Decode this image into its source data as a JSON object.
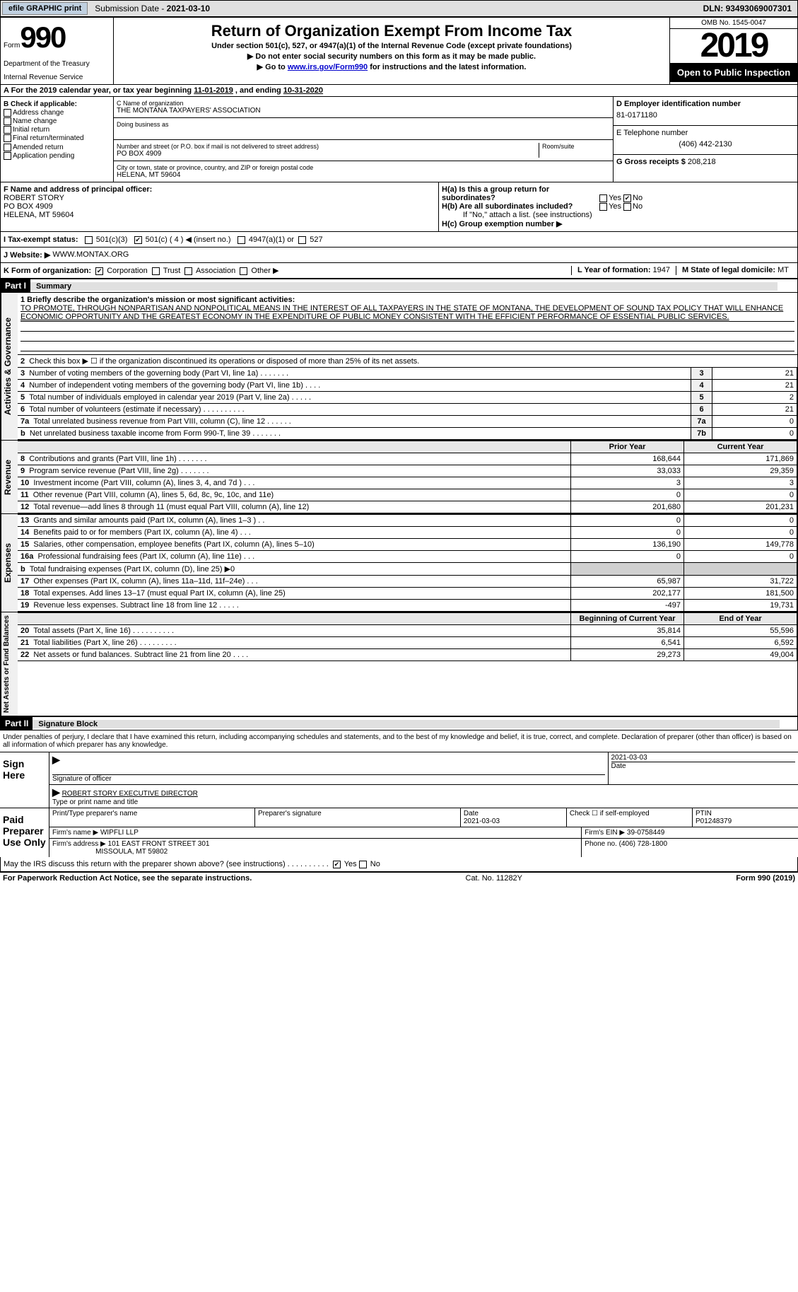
{
  "header": {
    "efile_btn": "efile GRAPHIC print",
    "sub_date_label": "Submission Date - ",
    "sub_date": "2021-03-10",
    "dln_label": "DLN: ",
    "dln": "93493069007301"
  },
  "top": {
    "form_word": "Form",
    "form_num": "990",
    "dept1": "Department of the Treasury",
    "dept2": "Internal Revenue Service",
    "title": "Return of Organization Exempt From Income Tax",
    "sub1": "Under section 501(c), 527, or 4947(a)(1) of the Internal Revenue Code (except private foundations)",
    "sub2": "▶ Do not enter social security numbers on this form as it may be made public.",
    "sub3a": "▶ Go to ",
    "sub3_link": "www.irs.gov/Form990",
    "sub3b": " for instructions and the latest information.",
    "omb": "OMB No. 1545-0047",
    "year": "2019",
    "open_pub": "Open to Public Inspection"
  },
  "period": {
    "a": "A For the 2019 calendar year, or tax year beginning ",
    "begin": "11-01-2019",
    "mid": "  , and ending ",
    "end": "10-31-2020"
  },
  "b": {
    "label": "B Check if applicable:",
    "addr": "Address change",
    "name": "Name change",
    "init": "Initial return",
    "final": "Final return/terminated",
    "amend": "Amended return",
    "app": "Application pending"
  },
  "c": {
    "name_lbl": "C Name of organization",
    "name": "THE MONTANA TAXPAYERS' ASSOCIATION",
    "dba_lbl": "Doing business as",
    "dba": "",
    "street_lbl": "Number and street (or P.O. box if mail is not delivered to street address)",
    "room_lbl": "Room/suite",
    "street": "PO BOX 4909",
    "city_lbl": "City or town, state or province, country, and ZIP or foreign postal code",
    "city": "HELENA, MT  59604"
  },
  "d": {
    "ein_lbl": "D Employer identification number",
    "ein": "81-0171180",
    "tel_lbl": "E Telephone number",
    "tel": "(406) 442-2130",
    "gross_lbl": "G Gross receipts $ ",
    "gross": "208,218"
  },
  "f": {
    "lbl": "F Name and address of principal officer:",
    "name": "ROBERT STORY",
    "addr1": "PO BOX 4909",
    "addr2": "HELENA, MT  59604"
  },
  "h": {
    "a_lbl": "H(a)  Is this a group return for subordinates?",
    "b_lbl": "H(b)  Are all subordinates included?",
    "b_note": "If \"No,\" attach a list. (see instructions)",
    "c_lbl": "H(c)  Group exemption number ▶"
  },
  "i": {
    "lbl": "I   Tax-exempt status:",
    "o1": "501(c)(3)",
    "o2": "501(c) ( 4 ) ◀ (insert no.)",
    "o3": "4947(a)(1) or",
    "o4": "527"
  },
  "j": {
    "lbl": "J   Website: ▶ ",
    "val": "WWW.MONTAX.ORG"
  },
  "k": {
    "lbl": "K Form of organization:",
    "corp": "Corporation",
    "trust": "Trust",
    "assoc": "Association",
    "other": "Other ▶"
  },
  "lm": {
    "l_lbl": "L Year of formation: ",
    "l_val": "1947",
    "m_lbl": "M State of legal domicile: ",
    "m_val": "MT"
  },
  "part1": {
    "hdr": "Part I",
    "title": "Summary",
    "side_ag": "Activities & Governance",
    "side_rev": "Revenue",
    "side_exp": "Expenses",
    "side_net": "Net Assets or Fund Balances"
  },
  "mission": {
    "lbl": "1  Briefly describe the organization's mission or most significant activities:",
    "text": "TO PROMOTE, THROUGH NONPARTISAN AND NONPOLITICAL MEANS IN THE INTEREST OF ALL TAXPAYERS IN THE STATE OF MONTANA, THE DEVELOPMENT OF SOUND TAX POLICY THAT WILL ENHANCE ECONOMIC OPPORTUNITY AND THE GREATEST ECONOMY IN THE EXPENDITURE OF PUBLIC MONEY CONSISTENT WITH THE EFFICIENT PERFORMANCE OF ESSENTIAL PUBLIC SERVICES."
  },
  "gov_lines": [
    {
      "n": "2",
      "t": "Check this box ▶ ☐  if the organization discontinued its operations or disposed of more than 25% of its net assets."
    },
    {
      "n": "3",
      "t": "Number of voting members of the governing body (Part VI, line 1a)   .    .    .    .    .    .    .",
      "box": "3",
      "v": "21"
    },
    {
      "n": "4",
      "t": "Number of independent voting members of the governing body (Part VI, line 1b)   .    .    .    .",
      "box": "4",
      "v": "21"
    },
    {
      "n": "5",
      "t": "Total number of individuals employed in calendar year 2019 (Part V, line 2a)   .    .    .    .    .",
      "box": "5",
      "v": "2"
    },
    {
      "n": "6",
      "t": "Total number of volunteers (estimate if necessary)   .    .    .    .    .    .    .    .    .    .",
      "box": "6",
      "v": "21"
    },
    {
      "n": "7a",
      "t": "Total unrelated business revenue from Part VIII, column (C), line 12   .    .    .    .    .    .",
      "box": "7a",
      "v": "0"
    },
    {
      "n": "b",
      "t": "Net unrelated business taxable income from Form 990-T, line 39   .    .    .    .    .    .    .",
      "box": "7b",
      "v": "0"
    }
  ],
  "fin_hdr": {
    "py": "Prior Year",
    "cy": "Current Year"
  },
  "rev_lines": [
    {
      "n": "8",
      "t": "Contributions and grants (Part VIII, line 1h)   .    .    .    .    .    .    .",
      "py": "168,644",
      "cy": "171,869"
    },
    {
      "n": "9",
      "t": "Program service revenue (Part VIII, line 2g)   .    .    .    .    .    .    .",
      "py": "33,033",
      "cy": "29,359"
    },
    {
      "n": "10",
      "t": "Investment income (Part VIII, column (A), lines 3, 4, and 7d )   .    .    .",
      "py": "3",
      "cy": "3"
    },
    {
      "n": "11",
      "t": "Other revenue (Part VIII, column (A), lines 5, 6d, 8c, 9c, 10c, and 11e)",
      "py": "0",
      "cy": "0"
    },
    {
      "n": "12",
      "t": "Total revenue—add lines 8 through 11 (must equal Part VIII, column (A), line 12)",
      "py": "201,680",
      "cy": "201,231"
    }
  ],
  "exp_lines": [
    {
      "n": "13",
      "t": "Grants and similar amounts paid (Part IX, column (A), lines 1–3 ) .   .",
      "py": "0",
      "cy": "0"
    },
    {
      "n": "14",
      "t": "Benefits paid to or for members (Part IX, column (A), line 4)   .    .    .",
      "py": "0",
      "cy": "0"
    },
    {
      "n": "15",
      "t": "Salaries, other compensation, employee benefits (Part IX, column (A), lines 5–10)",
      "py": "136,190",
      "cy": "149,778"
    },
    {
      "n": "16a",
      "t": "Professional fundraising fees (Part IX, column (A), line 11e)   .    .    .",
      "py": "0",
      "cy": "0"
    },
    {
      "n": "b",
      "t": "Total fundraising expenses (Part IX, column (D), line 25) ▶0",
      "shade": true
    },
    {
      "n": "17",
      "t": "Other expenses (Part IX, column (A), lines 11a–11d, 11f–24e)   .    .    .",
      "py": "65,987",
      "cy": "31,722"
    },
    {
      "n": "18",
      "t": "Total expenses. Add lines 13–17 (must equal Part IX, column (A), line 25)",
      "py": "202,177",
      "cy": "181,500"
    },
    {
      "n": "19",
      "t": "Revenue less expenses. Subtract line 18 from line 12   .    .    .    .    .",
      "py": "-497",
      "cy": "19,731"
    }
  ],
  "net_hdr": {
    "by": "Beginning of Current Year",
    "ey": "End of Year"
  },
  "net_lines": [
    {
      "n": "20",
      "t": "Total assets (Part X, line 16)   .    .    .    .    .    .    .    .    .    .",
      "py": "35,814",
      "cy": "55,596"
    },
    {
      "n": "21",
      "t": "Total liabilities (Part X, line 26)   .    .    .    .    .    .    .    .    .",
      "py": "6,541",
      "cy": "6,592"
    },
    {
      "n": "22",
      "t": "Net assets or fund balances. Subtract line 21 from line 20   .    .    .    .",
      "py": "29,273",
      "cy": "49,004"
    }
  ],
  "part2": {
    "hdr": "Part II",
    "title": "Signature Block"
  },
  "sig": {
    "decl": "Under penalties of perjury, I declare that I have examined this return, including accompanying schedules and statements, and to the best of my knowledge and belief, it is true, correct, and complete. Declaration of preparer (other than officer) is based on all information of which preparer has any knowledge.",
    "here": "Sign Here",
    "sig_lbl": "Signature of officer",
    "date": "2021-03-03",
    "date_lbl": "Date",
    "name": "ROBERT STORY EXECUTIVE DIRECTOR",
    "name_lbl": "Type or print name and title",
    "paid": "Paid Preparer Use Only",
    "prep_name_lbl": "Print/Type preparer's name",
    "prep_sig_lbl": "Preparer's signature",
    "prep_date_lbl": "Date",
    "prep_date": "2021-03-03",
    "self_lbl": "Check ☐ if self-employed",
    "ptin_lbl": "PTIN",
    "ptin": "P01248379",
    "firm_name_lbl": "Firm's name    ▶ ",
    "firm_name": "WIPFLI LLP",
    "firm_ein_lbl": "Firm's EIN ▶ ",
    "firm_ein": "39-0758449",
    "firm_addr_lbl": "Firm's address ▶ ",
    "firm_addr1": "101 EAST FRONT STREET 301",
    "firm_addr2": "MISSOULA, MT  59802",
    "phone_lbl": "Phone no. ",
    "phone": "(406) 728-1800",
    "discuss": "May the IRS discuss this return with the preparer shown above? (see instructions)   .    .    .    .    .    .    .    .    .    ."
  },
  "footer": {
    "left": "For Paperwork Reduction Act Notice, see the separate instructions.",
    "mid": "Cat. No. 11282Y",
    "right": "Form 990 (2019)"
  }
}
